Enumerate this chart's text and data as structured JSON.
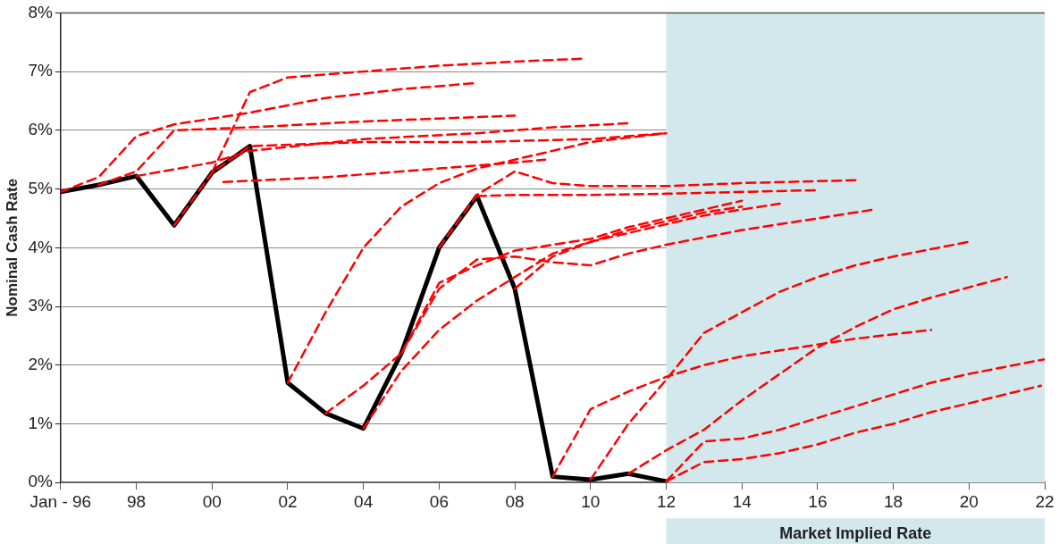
{
  "chart_data": {
    "type": "line",
    "ylabel": "Nominal Cash Rate",
    "xlim": [
      1996,
      2022
    ],
    "ylim": [
      0,
      8
    ],
    "xticks": [
      {
        "value": 1996,
        "label": "Jan - 96"
      },
      {
        "value": 1998,
        "label": "98"
      },
      {
        "value": 2000,
        "label": "00"
      },
      {
        "value": 2002,
        "label": "02"
      },
      {
        "value": 2004,
        "label": "04"
      },
      {
        "value": 2006,
        "label": "06"
      },
      {
        "value": 2008,
        "label": "08"
      },
      {
        "value": 2010,
        "label": "10"
      },
      {
        "value": 2012,
        "label": "12"
      },
      {
        "value": 2014,
        "label": "14"
      },
      {
        "value": 2016,
        "label": "16"
      },
      {
        "value": 2018,
        "label": "18"
      },
      {
        "value": 2020,
        "label": "20"
      },
      {
        "value": 2022,
        "label": "22"
      }
    ],
    "yticks": [
      {
        "value": 0,
        "label": "0%"
      },
      {
        "value": 1,
        "label": "1%"
      },
      {
        "value": 2,
        "label": "2%"
      },
      {
        "value": 3,
        "label": "3%"
      },
      {
        "value": 4,
        "label": "4%"
      },
      {
        "value": 5,
        "label": "5%"
      },
      {
        "value": 6,
        "label": "6%"
      },
      {
        "value": 7,
        "label": "7%"
      },
      {
        "value": 8,
        "label": "8%"
      }
    ],
    "grid": "y",
    "legend": false,
    "bands": [
      {
        "axis": "x",
        "from": 2012,
        "to": 2022,
        "label": "Market Implied Rate",
        "color": "#d3e8ec"
      }
    ],
    "series": [
      {
        "color": "#ff0000",
        "line_style": "dashed",
        "x": [
          1996,
          1997,
          1998,
          1999,
          2001,
          2003,
          2005,
          2006.9
        ],
        "values": [
          4.95,
          5.2,
          5.9,
          6.1,
          6.3,
          6.55,
          6.7,
          6.8
        ]
      },
      {
        "color": "#ff0000",
        "line_style": "dashed",
        "x": [
          1997,
          1998,
          1999,
          2001,
          2004,
          2006,
          2008
        ],
        "values": [
          5.07,
          5.3,
          6.0,
          6.05,
          6.15,
          6.2,
          6.25
        ]
      },
      {
        "color": "#ff0000",
        "line_style": "dashed",
        "x": [
          1998,
          2000,
          2001,
          2004,
          2007,
          2009,
          2011
        ],
        "values": [
          5.22,
          5.45,
          5.65,
          5.85,
          5.95,
          6.05,
          6.12
        ]
      },
      {
        "color": "#ff0000",
        "line_style": "dashed",
        "x": [
          1999,
          2000,
          2001,
          2004,
          2007,
          2010,
          2012
        ],
        "values": [
          4.38,
          5.28,
          5.73,
          5.8,
          5.8,
          5.85,
          5.95
        ]
      },
      {
        "color": "#ff0000",
        "line_style": "dashed",
        "x": [
          2000,
          2001,
          2002,
          2004,
          2006,
          2008,
          2009.8
        ],
        "values": [
          5.28,
          6.65,
          6.9,
          7.0,
          7.1,
          7.17,
          7.22
        ]
      },
      {
        "color": "#ff0000",
        "line_style": "dashed",
        "x": [
          2000.3,
          2003,
          2006,
          2008,
          2008.8
        ],
        "values": [
          5.12,
          5.2,
          5.35,
          5.45,
          5.5
        ]
      },
      {
        "color": "#ff0000",
        "line_style": "dashed",
        "x": [
          2002,
          2003,
          2004,
          2005,
          2006,
          2007,
          2008,
          2009,
          2010,
          2012
        ],
        "values": [
          1.7,
          2.9,
          4.0,
          4.7,
          5.1,
          5.35,
          5.5,
          5.65,
          5.8,
          5.95
        ]
      },
      {
        "color": "#ff0000",
        "line_style": "dashed",
        "x": [
          2003,
          2004,
          2005,
          2006,
          2007,
          2008,
          2009,
          2010,
          2011,
          2012,
          2013,
          2014
        ],
        "values": [
          1.18,
          1.65,
          2.2,
          3.4,
          3.7,
          3.95,
          4.05,
          4.15,
          4.35,
          4.5,
          4.65,
          4.8
        ]
      },
      {
        "color": "#ff0000",
        "line_style": "dashed",
        "x": [
          2004,
          2005,
          2006,
          2007,
          2008,
          2009,
          2010,
          2011,
          2012,
          2013,
          2014,
          2015
        ],
        "values": [
          0.92,
          1.9,
          2.6,
          3.1,
          3.5,
          3.9,
          4.1,
          4.25,
          4.4,
          4.55,
          4.65,
          4.75
        ]
      },
      {
        "color": "#ff0000",
        "line_style": "dashed",
        "x": [
          2005,
          2006,
          2007,
          2008,
          2009,
          2010,
          2011,
          2012,
          2014,
          2016,
          2017.5
        ],
        "values": [
          2.2,
          3.3,
          3.8,
          3.85,
          3.75,
          3.7,
          3.9,
          4.05,
          4.3,
          4.5,
          4.65
        ]
      },
      {
        "color": "#ff0000",
        "line_style": "dashed",
        "x": [
          2007,
          2008,
          2010,
          2012,
          2014,
          2016
        ],
        "values": [
          4.88,
          4.9,
          4.9,
          4.92,
          4.95,
          4.98
        ]
      },
      {
        "color": "#ff0000",
        "line_style": "dashed",
        "x": [
          2006,
          2007,
          2008,
          2009,
          2010,
          2012,
          2014,
          2017
        ],
        "values": [
          4.0,
          4.9,
          5.3,
          5.1,
          5.05,
          5.05,
          5.1,
          5.15
        ]
      },
      {
        "color": "#ff0000",
        "line_style": "dashed",
        "x": [
          2008,
          2009,
          2010,
          2011,
          2012,
          2013,
          2014
        ],
        "values": [
          3.3,
          3.85,
          4.1,
          4.3,
          4.45,
          4.6,
          4.7
        ]
      },
      {
        "color": "#ff0000",
        "line_style": "dashed",
        "x": [
          2009,
          2010,
          2011,
          2012,
          2013,
          2014,
          2015,
          2016,
          2017,
          2019
        ],
        "values": [
          0.1,
          1.25,
          1.55,
          1.8,
          2.0,
          2.15,
          2.25,
          2.35,
          2.45,
          2.6
        ]
      },
      {
        "color": "#ff0000",
        "line_style": "dashed",
        "x": [
          2010,
          2011,
          2012,
          2013,
          2014,
          2015,
          2016,
          2017,
          2018,
          2020
        ],
        "values": [
          0.05,
          1.0,
          1.75,
          2.55,
          2.9,
          3.25,
          3.5,
          3.7,
          3.85,
          4.1
        ]
      },
      {
        "color": "#ff0000",
        "line_style": "dashed",
        "x": [
          2011,
          2012,
          2013,
          2014,
          2015,
          2016,
          2017,
          2018,
          2019,
          2021
        ],
        "values": [
          0.15,
          0.55,
          0.9,
          1.4,
          1.85,
          2.3,
          2.65,
          2.95,
          3.15,
          3.5
        ]
      },
      {
        "color": "#ff0000",
        "line_style": "dashed",
        "x": [
          2012,
          2013,
          2014,
          2015,
          2016,
          2017,
          2018,
          2019,
          2020,
          2022
        ],
        "values": [
          0.02,
          0.7,
          0.75,
          0.9,
          1.1,
          1.3,
          1.5,
          1.7,
          1.85,
          2.1
        ]
      },
      {
        "color": "#ff0000",
        "line_style": "dashed",
        "x": [
          2012,
          2013,
          2014,
          2015,
          2016,
          2017,
          2018,
          2019,
          2020,
          2021.9
        ],
        "values": [
          0.02,
          0.35,
          0.4,
          0.5,
          0.65,
          0.85,
          1.0,
          1.2,
          1.35,
          1.65
        ]
      },
      {
        "color": "#000000",
        "line_style": "solid",
        "x": [
          1996,
          1997,
          1998,
          1999,
          2000,
          2001,
          2002,
          2003,
          2004,
          2005,
          2006,
          2007,
          2008,
          2009,
          2010,
          2011,
          2012
        ],
        "values": [
          4.95,
          5.07,
          5.22,
          4.38,
          5.28,
          5.73,
          1.7,
          1.18,
          0.92,
          2.2,
          4.0,
          4.88,
          3.3,
          0.1,
          0.05,
          0.15,
          0.02
        ]
      }
    ]
  }
}
